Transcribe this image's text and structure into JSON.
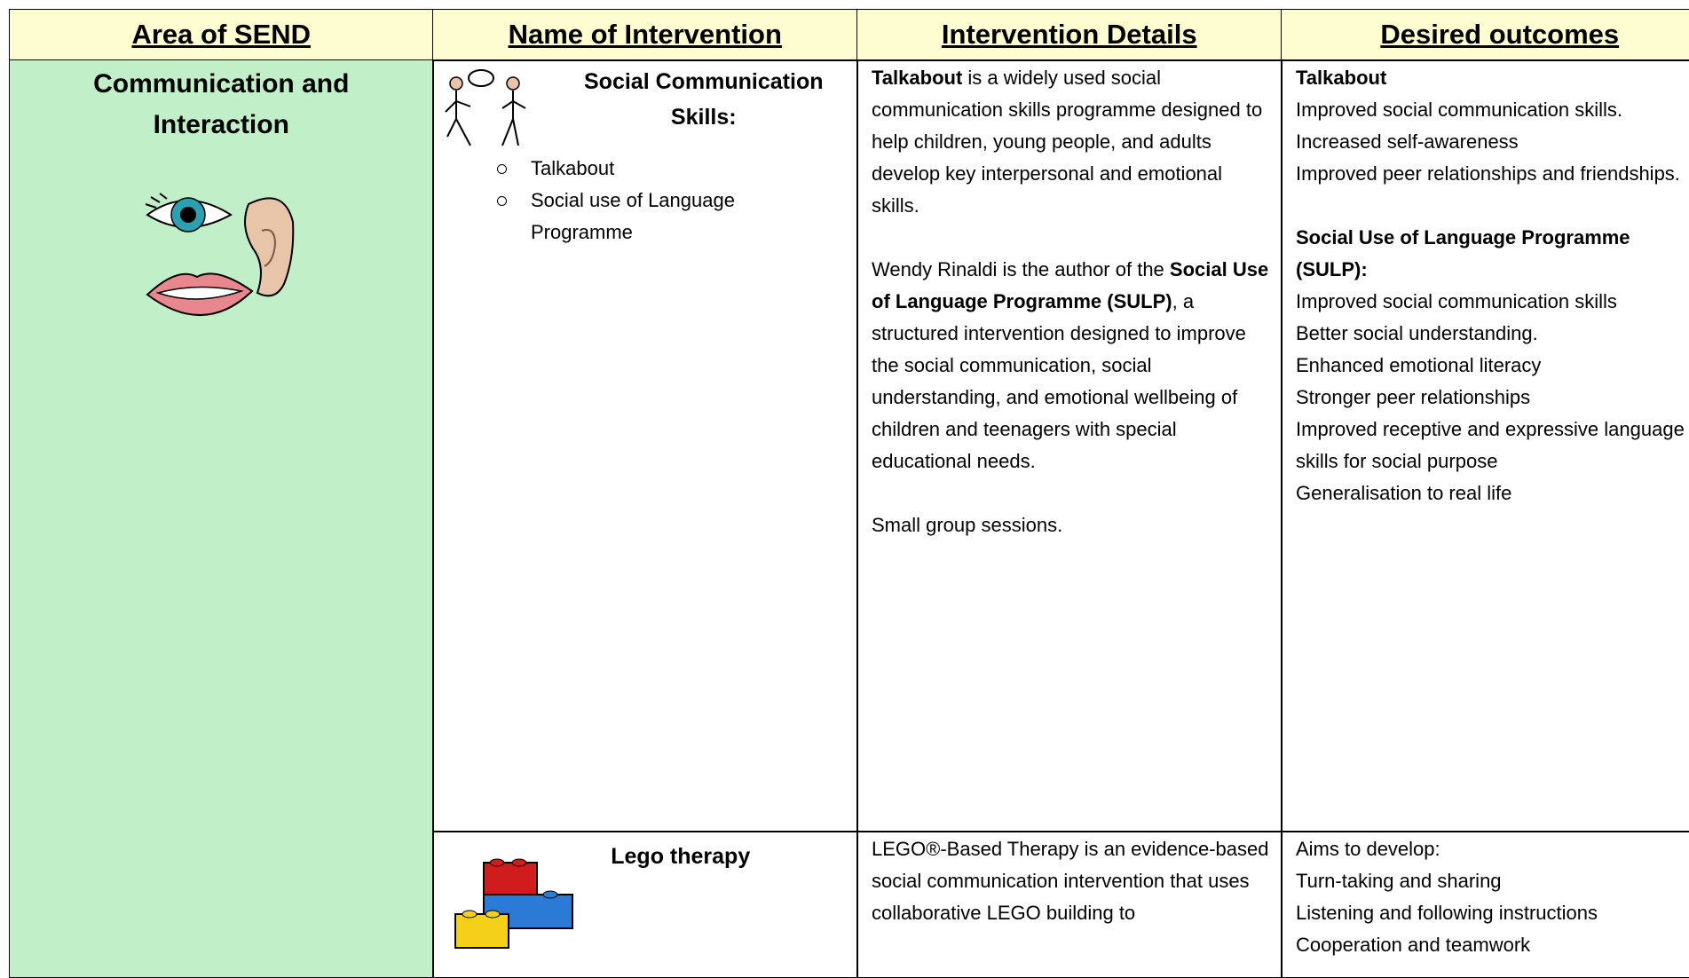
{
  "header": {
    "columns": [
      "Area of SEND",
      "Name of Intervention",
      "Intervention Details",
      "Desired outcomes"
    ]
  },
  "area": {
    "title": "Communication and Interaction"
  },
  "rows": [
    {
      "intervention": {
        "title": "Social Communication Skills:",
        "items": [
          "Talkabout",
          "Social use of Language Programme"
        ]
      },
      "details": [
        [
          {
            "text": "Talkabout",
            "bold": true
          },
          {
            "text": " is a widely used social communication skills programme designed to help children, young people, and adults develop key interpersonal and emotional skills."
          }
        ],
        [
          {
            "text": "Wendy Rinaldi is the author of the "
          },
          {
            "text": "Social Use of Language Programme (SULP)",
            "bold": true
          },
          {
            "text": ", a structured intervention designed to improve the social communication, social understanding, and emotional wellbeing of children and teenagers with special educational needs."
          }
        ],
        [
          {
            "text": "Small group sessions."
          }
        ]
      ],
      "outcomes": [
        {
          "heading": "Talkabout",
          "lines": [
            "Improved social communication skills.",
            "Increased self-awareness",
            "Improved peer relationships and friendships."
          ]
        },
        {
          "heading": "Social Use of Language Programme (SULP):",
          "lines": [
            "Improved social communication skills",
            "Better social understanding.",
            "Enhanced emotional literacy",
            "Stronger peer relationships",
            "Improved receptive and expressive language skills for social purpose",
            "Generalisation to real life"
          ]
        }
      ]
    },
    {
      "intervention": {
        "title": "Lego therapy",
        "items": []
      },
      "details": [
        [
          {
            "text": "LEGO®-Based Therapy is an evidence-based social communication intervention that uses collaborative LEGO building to"
          }
        ]
      ],
      "outcomes": [
        {
          "lines": [
            "Aims to develop:",
            "Turn-taking and sharing",
            "Listening and following instructions",
            "Cooperation and teamwork"
          ]
        }
      ]
    }
  ]
}
